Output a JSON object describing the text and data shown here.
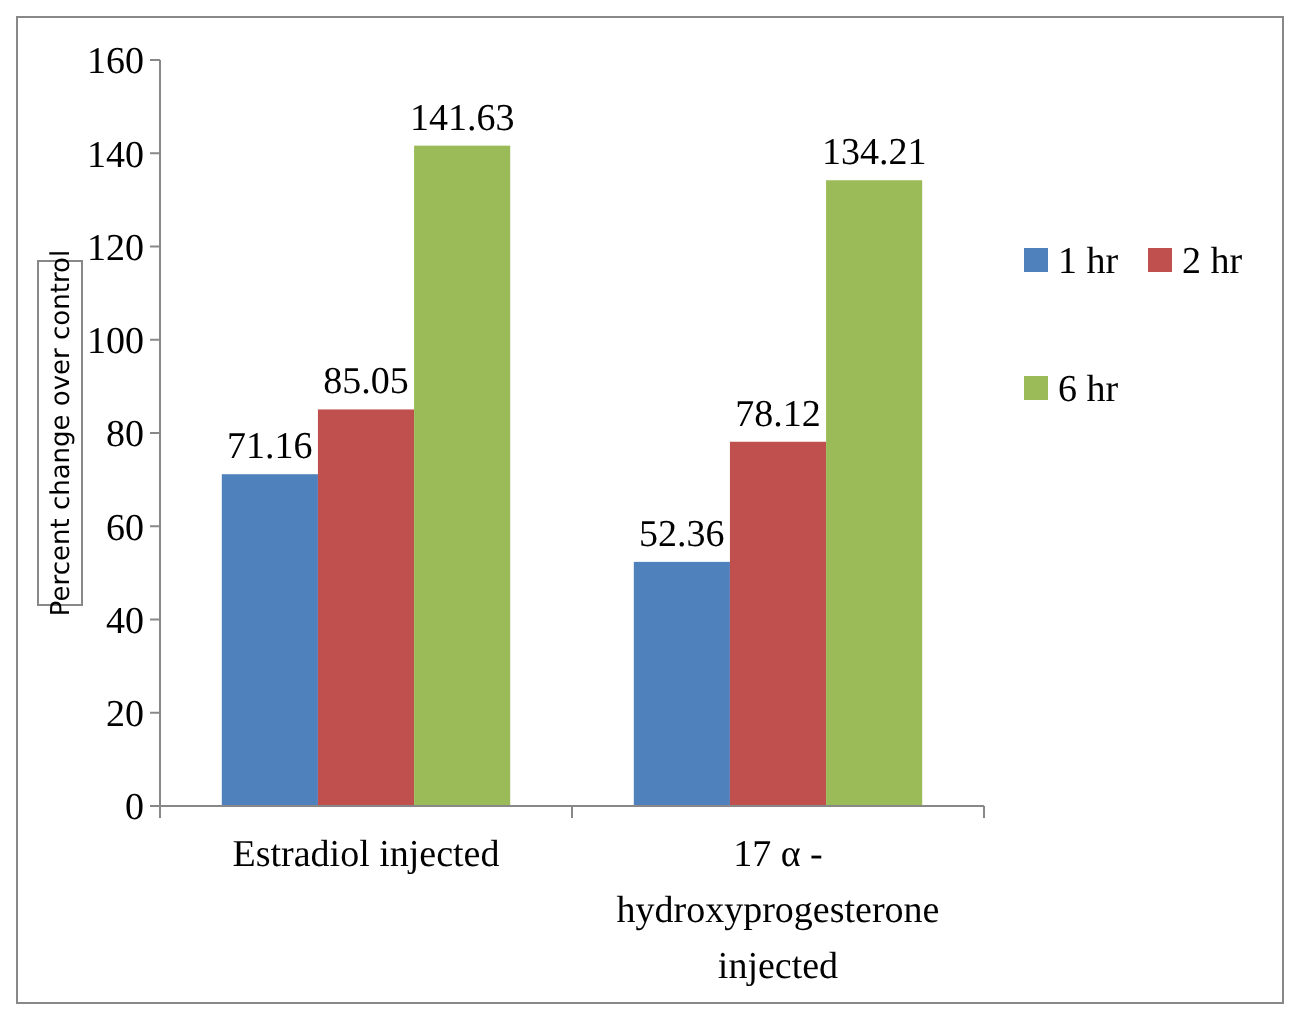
{
  "chart_data": {
    "type": "bar",
    "ylabel": "Percent change over control",
    "categories": [
      "Estradiol injected",
      "17 α - hydroxyprogesterone injected"
    ],
    "series": [
      {
        "name": "1 hr",
        "color": "#4f81bd",
        "values": [
          71.16,
          52.36
        ]
      },
      {
        "name": "2 hr",
        "color": "#c0504d",
        "values": [
          85.05,
          78.12
        ]
      },
      {
        "name": "6 hr",
        "color": "#9bbb59",
        "values": [
          141.63,
          134.21
        ]
      }
    ],
    "ylim": [
      0,
      160
    ],
    "yticks": [
      0,
      20,
      40,
      60,
      80,
      100,
      120,
      140,
      160
    ],
    "data_labels": true,
    "grid": false,
    "legend": "right"
  }
}
